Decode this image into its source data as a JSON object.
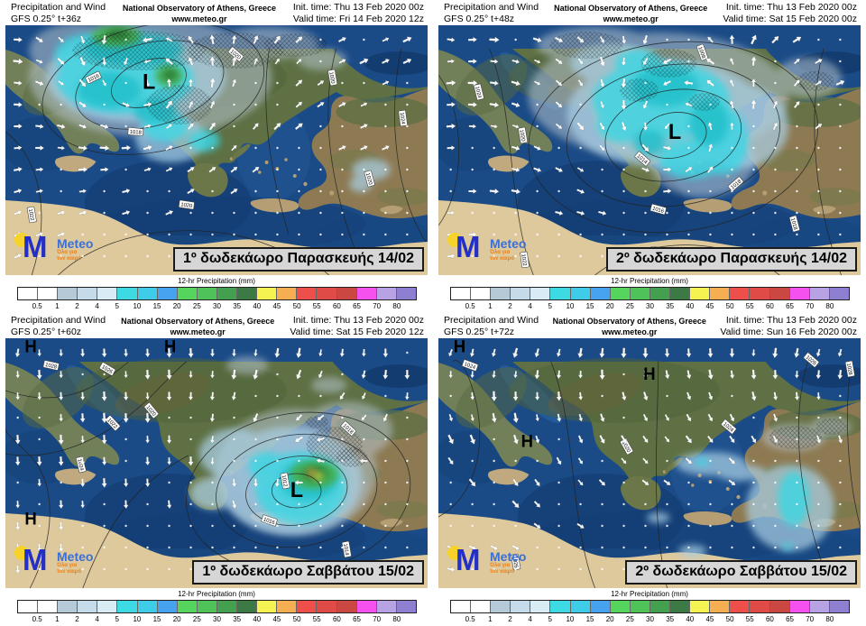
{
  "logo": {
    "m": "M",
    "brand": "Meteo",
    "tagline_line1": "Όλα για",
    "tagline_line2": "τον καιρό"
  },
  "colorbar": {
    "title": "12-hr Precipitation (mm)",
    "ticks": [
      "0.5",
      "1",
      "2",
      "4",
      "5",
      "10",
      "15",
      "20",
      "25",
      "30",
      "35",
      "40",
      "45",
      "50",
      "55",
      "60",
      "65",
      "70",
      "80"
    ],
    "segments": [
      "#ffffff",
      "#ffffff",
      "#b5c9d6",
      "#c5dbe9",
      "#d9ebf4",
      "#3edae4",
      "#3ecce8",
      "#47a3f0",
      "#55d55e",
      "#4fc25a",
      "#43a04e",
      "#3b7a45",
      "#f5f352",
      "#f5ae52",
      "#ee4f4b",
      "#e04b47",
      "#cb4742",
      "#f551ef",
      "#b7a3e3",
      "#8e7fd1"
    ]
  },
  "panels": [
    {
      "header": {
        "product": "Precipitation and Wind",
        "model": "GFS 0.25° t+36z",
        "org": "National Observatory of Athens, Greece",
        "site": "www.meteo.gr",
        "init_time": "Init. time: Thu 13 Feb 2020 00z",
        "valid_time": "Valid time: Fri 14 Feb 2020 12z"
      },
      "caption": "1º δωδεκάωρο Παρασκευής 14/02",
      "pressure_markers": [
        {
          "type": "L",
          "x": 34,
          "y": 23
        }
      ],
      "isobar_labels": [
        "1016",
        "1018",
        "1020",
        "1020",
        "1020",
        "1024",
        "1022",
        "1020"
      ]
    },
    {
      "header": {
        "product": "Precipitation and Wind",
        "model": "GFS 0.25° t+48z",
        "org": "National Observatory of Athens, Greece",
        "site": "www.meteo.gr",
        "init_time": "Init. time: Thu 13 Feb 2020 00z",
        "valid_time": "Valid time: Sat 15 Feb 2020 00z"
      },
      "caption": "2º δωδεκάωρο Παρασκευής 14/02",
      "pressure_markers": [
        {
          "type": "L",
          "x": 56,
          "y": 43
        }
      ],
      "isobar_labels": [
        "1014",
        "1016",
        "1008",
        "1024",
        "1020",
        "1010",
        "1018",
        "1022",
        "1018"
      ]
    },
    {
      "header": {
        "product": "Precipitation and Wind",
        "model": "GFS 0.25° t+60z",
        "org": "National Observatory of Athens, Greece",
        "site": "www.meteo.gr",
        "init_time": "Init. time: Thu 13 Feb 2020 00z",
        "valid_time": "Valid time: Sat 15 Feb 2020 12z"
      },
      "caption": "1º δωδεκάωρο Σαββάτου 15/02",
      "pressure_markers": [
        {
          "type": "L",
          "x": 69,
          "y": 61
        },
        {
          "type": "H",
          "x": 6,
          "y": 3
        },
        {
          "type": "H",
          "x": 39,
          "y": 3
        },
        {
          "type": "H",
          "x": 6,
          "y": 72
        }
      ],
      "isobar_labels": [
        "1028",
        "1026",
        "1024",
        "1022",
        "1020",
        "1018",
        "1016",
        "1014",
        "1012"
      ]
    },
    {
      "header": {
        "product": "Precipitation and Wind",
        "model": "GFS 0.25° t+72z",
        "org": "National Observatory of Athens, Greece",
        "site": "www.meteo.gr",
        "init_time": "Init. time: Thu 13 Feb 2020 00z",
        "valid_time": "Valid time: Sun 16 Feb 2020 00z"
      },
      "caption": "2º δωδεκάωρο Σαββάτου 15/02",
      "pressure_markers": [
        {
          "type": "H",
          "x": 5,
          "y": 3
        },
        {
          "type": "H",
          "x": 50,
          "y": 14
        },
        {
          "type": "H",
          "x": 21,
          "y": 41
        }
      ],
      "isobar_labels": [
        "1026",
        "1024",
        "1020",
        "1028",
        "1026",
        "1024"
      ]
    }
  ]
}
